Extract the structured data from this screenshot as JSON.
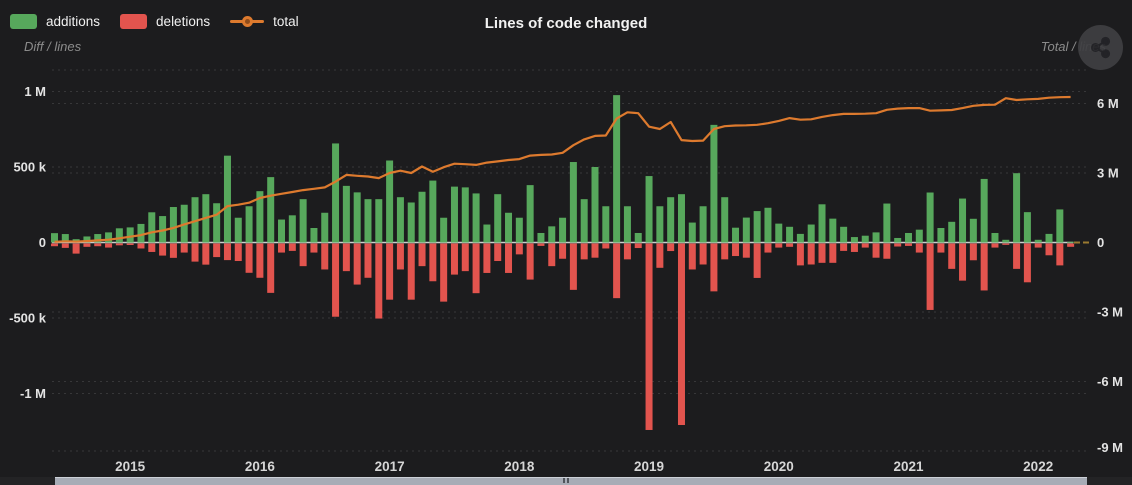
{
  "header": {
    "title": "Lines of code changed",
    "left_axis_subtitle": "Diff / lines",
    "right_axis_subtitle": "Total / lines",
    "legend": [
      {
        "label": "additions",
        "marker": "swatch",
        "color": "#57a85c"
      },
      {
        "label": "deletions",
        "marker": "swatch",
        "color": "#e2544e"
      },
      {
        "label": "total",
        "marker": "line-dot",
        "color": "#dd7a2e"
      }
    ],
    "share_icon": "share-icon"
  },
  "colors": {
    "background": "#1c1c1e",
    "additions": "#57a85c",
    "deletions": "#e2544e",
    "total_line": "#dd7a2e",
    "zero_line": "#cccccc",
    "gridline": "#3a3a3d",
    "tick_text": "#e3e3e3",
    "year_text": "#d6d6d6",
    "muted_text": "#8b8b8b",
    "scrollbar_thumb": "#a7acb6"
  },
  "chart_data": {
    "type": "bar",
    "subtype": "combo-bar-line",
    "title": "Lines of code changed",
    "x": [
      "2014-06",
      "2014-07",
      "2014-08",
      "2014-09",
      "2014-10",
      "2014-11",
      "2014-12",
      "2015-01",
      "2015-02",
      "2015-03",
      "2015-04",
      "2015-05",
      "2015-06",
      "2015-07",
      "2015-08",
      "2015-09",
      "2015-10",
      "2015-11",
      "2015-12",
      "2016-01",
      "2016-02",
      "2016-03",
      "2016-04",
      "2016-05",
      "2016-06",
      "2016-07",
      "2016-08",
      "2016-09",
      "2016-10",
      "2016-11",
      "2016-12",
      "2017-01",
      "2017-02",
      "2017-03",
      "2017-04",
      "2017-05",
      "2017-06",
      "2017-07",
      "2017-08",
      "2017-09",
      "2017-10",
      "2017-11",
      "2017-12",
      "2018-01",
      "2018-02",
      "2018-03",
      "2018-04",
      "2018-05",
      "2018-06",
      "2018-07",
      "2018-08",
      "2018-09",
      "2018-10",
      "2018-11",
      "2018-12",
      "2019-01",
      "2019-02",
      "2019-03",
      "2019-04",
      "2019-05",
      "2019-06",
      "2019-07",
      "2019-08",
      "2019-09",
      "2019-10",
      "2019-11",
      "2019-12",
      "2020-01",
      "2020-02",
      "2020-03",
      "2020-04",
      "2020-05",
      "2020-06",
      "2020-07",
      "2020-08",
      "2020-09",
      "2020-10",
      "2020-11",
      "2020-12",
      "2021-01",
      "2021-02",
      "2021-03",
      "2021-04",
      "2021-05",
      "2021-06",
      "2021-07",
      "2021-08",
      "2021-09",
      "2021-10",
      "2021-11",
      "2021-12",
      "2022-01",
      "2022-02",
      "2022-03",
      "2022-04"
    ],
    "series": [
      {
        "name": "additions",
        "type": "bar",
        "axis": "left",
        "unit": "thousand lines",
        "color": "#57a85c",
        "values_k": [
          62,
          56,
          22,
          40,
          56,
          67,
          94,
          100,
          123,
          200,
          175,
          235,
          250,
          300,
          320,
          260,
          575,
          164,
          240,
          340,
          433,
          152,
          180,
          287,
          96,
          197,
          656,
          375,
          332,
          287,
          287,
          543,
          300,
          265,
          336,
          410,
          164,
          370,
          365,
          325,
          119,
          320,
          197,
          164,
          380,
          63,
          107,
          164,
          533,
          287,
          500,
          240,
          976,
          240,
          63,
          440,
          240,
          300,
          320,
          132,
          240,
          779,
          300,
          98,
          165,
          208,
          230,
          125,
          104,
          57,
          119,
          253,
          158,
          104,
          36,
          45,
          67,
          258,
          30,
          63,
          85,
          331,
          96,
          137,
          291,
          157,
          421,
          63,
          18,
          459,
          201,
          18,
          57,
          219,
          5
        ]
      },
      {
        "name": "deletions",
        "type": "bar",
        "axis": "left",
        "unit": "thousand lines (drawn downward)",
        "color": "#e2544e",
        "values_k": [
          18,
          29,
          67,
          22,
          18,
          27,
          12,
          10,
          33,
          56,
          80,
          95,
          60,
          120,
          140,
          90,
          110,
          116,
          194,
          227,
          327,
          60,
          49,
          150,
          60,
          172,
          485,
          183,
          272,
          227,
          497,
          372,
          172,
          372,
          150,
          250,
          385,
          206,
          183,
          329,
          195,
          116,
          195,
          72,
          239,
          16,
          150,
          101,
          307,
          105,
          94,
          33,
          362,
          105,
          30,
          1235,
          161,
          50,
          1202,
          172,
          139,
          317,
          105,
          83,
          94,
          228,
          60,
          27,
          22,
          145,
          139,
          128,
          128,
          49,
          56,
          27,
          94,
          101,
          20,
          16,
          60,
          440,
          60,
          168,
          246,
          111,
          311,
          27,
          9,
          168,
          257,
          27,
          78,
          145,
          22
        ]
      },
      {
        "name": "total",
        "type": "line",
        "axis": "right",
        "unit": "million lines",
        "color": "#dd7a2e",
        "values_M": [
          0.03,
          0.05,
          0.04,
          0.06,
          0.09,
          0.12,
          0.18,
          0.25,
          0.32,
          0.44,
          0.52,
          0.63,
          0.78,
          0.92,
          1.06,
          1.2,
          1.57,
          1.63,
          1.72,
          1.92,
          2.02,
          2.1,
          2.18,
          2.26,
          2.32,
          2.38,
          2.63,
          2.92,
          2.88,
          2.85,
          2.78,
          3.0,
          3.1,
          3.0,
          3.28,
          3.05,
          3.25,
          3.4,
          3.38,
          3.35,
          3.45,
          3.5,
          3.56,
          3.6,
          3.75,
          3.78,
          3.8,
          3.87,
          4.2,
          4.45,
          4.6,
          4.62,
          5.35,
          5.62,
          5.58,
          5.0,
          4.9,
          5.2,
          4.42,
          4.38,
          4.4,
          4.9,
          5.02,
          5.05,
          5.06,
          5.08,
          5.15,
          5.25,
          5.37,
          5.3,
          5.32,
          5.42,
          5.5,
          5.55,
          5.55,
          5.56,
          5.58,
          5.73,
          5.78,
          5.8,
          5.8,
          5.69,
          5.7,
          5.72,
          5.8,
          5.9,
          5.94,
          5.95,
          6.23,
          6.15,
          6.18,
          6.2,
          6.25,
          6.27,
          6.28
        ]
      }
    ],
    "left_axis": {
      "title": "Diff / lines",
      "tick_labels": [
        "1 M",
        "500 k",
        "0",
        "-500 k",
        "-1 M"
      ],
      "tick_values_k": [
        1000,
        500,
        0,
        -500,
        -1000
      ],
      "range_k": [
        -1250,
        1250
      ]
    },
    "right_axis": {
      "title": "Total / lines",
      "tick_labels": [
        "6 M",
        "3 M",
        "0",
        "-3 M",
        "-6 M",
        "-9 M"
      ],
      "tick_values_M": [
        6,
        3,
        0,
        -3,
        -6,
        -9
      ],
      "range_M": [
        -9.2,
        7.5
      ]
    },
    "x_axis": {
      "tick_labels": [
        "2015",
        "2016",
        "2017",
        "2018",
        "2019",
        "2020",
        "2021",
        "2022"
      ],
      "tick_months": [
        "2015-01",
        "2016-01",
        "2017-01",
        "2018-01",
        "2019-01",
        "2020-01",
        "2021-01",
        "2022-01"
      ]
    },
    "grid": true,
    "legend_position": "top-left"
  }
}
